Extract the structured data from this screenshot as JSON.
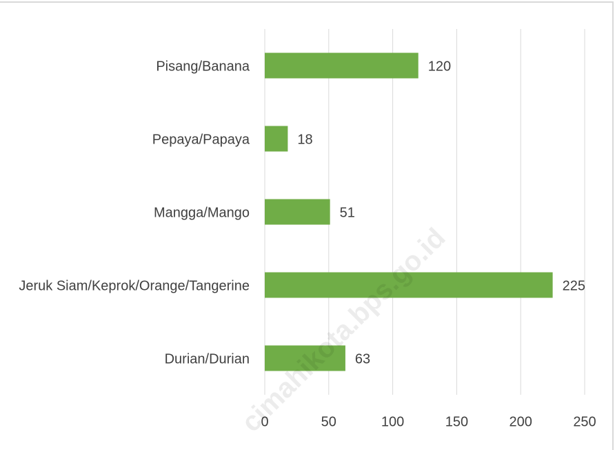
{
  "chart_data": {
    "type": "bar",
    "orientation": "horizontal",
    "categories": [
      "Pisang/Banana",
      "Pepaya/Papaya",
      "Mangga/Mango",
      "Jeruk Siam/Keprok/Orange/Tangerine",
      "Durian/Durian"
    ],
    "values": [
      120,
      18,
      51,
      225,
      63
    ],
    "color": "#70ad47",
    "xlim": [
      0,
      250
    ],
    "xticks": [
      0,
      50,
      100,
      150,
      200,
      250
    ],
    "grid": true,
    "watermark": "cimahikota.bps.go.id"
  }
}
